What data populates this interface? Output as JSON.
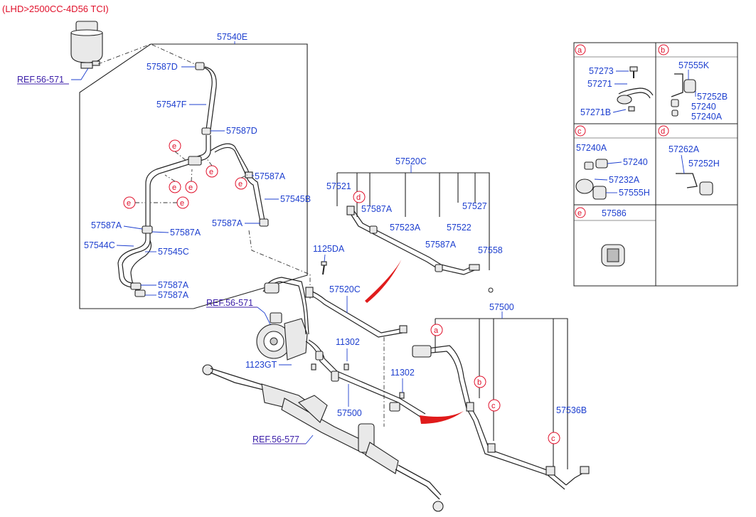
{
  "header": {
    "title": "(LHD>2500CC-4D56 TCI)"
  },
  "colors": {
    "label": "#1d3fcf",
    "ref": "#3b1ea8",
    "callout": "#e0102a"
  },
  "refs": {
    "r1": "REF.56-571",
    "r2": "REF.56-571",
    "r3": "REF.56-577"
  },
  "labels": {
    "p57540E": "57540E",
    "p57587D_a": "57587D",
    "p57547F": "57547F",
    "p57587D_b": "57587D",
    "p57587A_1": "57587A",
    "p57545B": "57545B",
    "p57587A_2": "57587A",
    "p57587A_3": "57587A",
    "p57587A_4": "57587A",
    "p57544C": "57544C",
    "p57545C": "57545C",
    "p57587A_5": "57587A",
    "p57587A_6": "57587A",
    "p57520C_a": "57520C",
    "p57521": "57521",
    "p57587A_7": "57587A",
    "p57523A": "57523A",
    "p57527": "57527",
    "p57522": "57522",
    "p57587A_8": "57587A",
    "p57558": "57558",
    "p1125DA": "1125DA",
    "p57520C_b": "57520C",
    "p11302_a": "11302",
    "p1123GT": "1123GT",
    "p11302_b": "11302",
    "p57500_a": "57500",
    "p57500_b": "57500",
    "p57536B": "57536B"
  },
  "callouts": {
    "a": "a",
    "b": "b",
    "c": "c",
    "d": "d",
    "e": "e"
  },
  "legend": {
    "a": {
      "letter": "a",
      "parts": [
        "57273",
        "57271",
        "57271B"
      ]
    },
    "b": {
      "letter": "b",
      "parts": [
        "57555K",
        "57252B",
        "57240",
        "57240A"
      ]
    },
    "c": {
      "letter": "c",
      "parts": [
        "57240A",
        "57240",
        "57232A",
        "57555H"
      ]
    },
    "d": {
      "letter": "d",
      "parts": [
        "57262A",
        "57252H"
      ]
    },
    "e": {
      "letter": "e",
      "parts": [
        "57586"
      ]
    }
  }
}
